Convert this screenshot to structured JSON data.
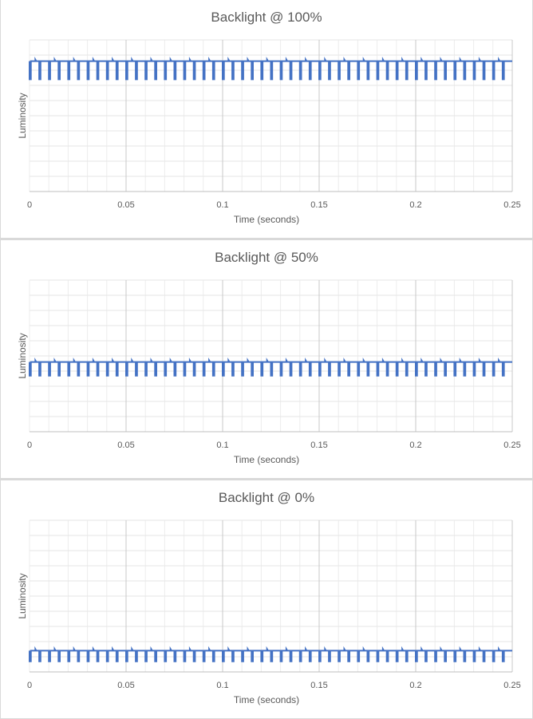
{
  "chart_data": [
    {
      "type": "line",
      "title": "Backlight @ 100%",
      "xlabel": "Time (seconds)",
      "ylabel": "Luminosity",
      "xlim": [
        0,
        0.25
      ],
      "x_ticks": [
        "0",
        "0.05",
        "0.1",
        "0.15",
        "0.2",
        "0.25"
      ],
      "grid": true,
      "series": [
        {
          "color": "#4472c4",
          "baseline": 0.86,
          "dip_min": 0.74,
          "period_seconds": 0.005,
          "dip_width_seconds": 0.0007
        }
      ]
    },
    {
      "type": "line",
      "title": "Backlight @ 50%",
      "xlabel": "Time (seconds)",
      "ylabel": "Luminosity",
      "xlim": [
        0,
        0.25
      ],
      "x_ticks": [
        "0",
        "0.05",
        "0.1",
        "0.15",
        "0.2",
        "0.25"
      ],
      "grid": true,
      "series": [
        {
          "color": "#4472c4",
          "baseline": 0.46,
          "dip_min": 0.37,
          "period_seconds": 0.005,
          "dip_width_seconds": 0.0007
        }
      ]
    },
    {
      "type": "line",
      "title": "Backlight @ 0%",
      "xlabel": "Time (seconds)",
      "ylabel": "Luminosity",
      "xlim": [
        0,
        0.25
      ],
      "x_ticks": [
        "0",
        "0.05",
        "0.1",
        "0.15",
        "0.2",
        "0.25"
      ],
      "grid": true,
      "series": [
        {
          "color": "#4472c4",
          "baseline": 0.14,
          "dip_min": 0.07,
          "period_seconds": 0.005,
          "dip_width_seconds": 0.0007
        }
      ]
    }
  ]
}
